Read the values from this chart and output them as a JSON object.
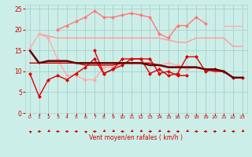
{
  "bg_color": "#cceee8",
  "grid_color": "#aad4ce",
  "xlabel": "Vent moyen/en rafales ( km/h )",
  "xlabel_color": "#cc0000",
  "tick_color": "#cc0000",
  "arrow_color": "#cc0000",
  "ylim": [
    0,
    26
  ],
  "xlim": [
    -0.5,
    23.5
  ],
  "yticks": [
    0,
    5,
    10,
    15,
    20,
    25
  ],
  "xticks": [
    0,
    1,
    2,
    3,
    4,
    5,
    6,
    7,
    8,
    9,
    10,
    11,
    12,
    13,
    14,
    15,
    16,
    17,
    18,
    19,
    20,
    21,
    22,
    23
  ],
  "series": [
    {
      "y": [
        15,
        12,
        12.5,
        12.5,
        12.5,
        12,
        12,
        12,
        12,
        12,
        12,
        12,
        12,
        11.5,
        11.5,
        11,
        11,
        11,
        11,
        10.5,
        10.5,
        10,
        8.5,
        8.5
      ],
      "color": "#660000",
      "lw": 1.8,
      "marker": null,
      "zorder": 6
    },
    {
      "y": [
        9.5,
        4,
        8,
        9,
        8,
        9.5,
        11,
        13,
        9.5,
        10.5,
        13,
        13,
        13,
        9.5,
        10.5,
        9,
        9.5,
        13.5,
        13.5,
        10,
        10.5,
        10,
        8.5,
        8.5
      ],
      "color": "#dd0000",
      "lw": 1.0,
      "marker": "D",
      "ms": 2,
      "zorder": 5
    },
    {
      "y": [
        12,
        12,
        12,
        12,
        12,
        12,
        11.5,
        11.5,
        11.5,
        11.5,
        12,
        12,
        12,
        12,
        11.5,
        11,
        11,
        11,
        11,
        10.5,
        10,
        10,
        8.5,
        8.5
      ],
      "color": "#cc0000",
      "lw": 1.0,
      "marker": null,
      "zorder": 4
    },
    {
      "y": [
        null,
        null,
        null,
        null,
        null,
        null,
        null,
        15,
        9.5,
        10.5,
        11.5,
        13,
        13,
        13,
        9.5,
        10,
        9,
        9,
        null,
        null,
        null,
        null,
        null,
        null
      ],
      "color": "#dd0000",
      "lw": 1.0,
      "marker": "D",
      "ms": 2,
      "zorder": 5
    },
    {
      "y": [
        null,
        null,
        null,
        20,
        21,
        22,
        23,
        24.5,
        23,
        23,
        23.5,
        24,
        23.5,
        23,
        19,
        18,
        21,
        21,
        23,
        21.5,
        null,
        null,
        null,
        null
      ],
      "color": "#ff7777",
      "lw": 1.0,
      "marker": "D",
      "ms": 2,
      "zorder": 3
    },
    {
      "y": [
        null,
        19,
        18.5,
        18,
        18,
        18,
        18,
        18,
        18,
        18,
        18,
        18,
        18,
        18,
        18,
        17.5,
        17,
        17,
        18,
        18,
        18,
        18,
        16,
        16
      ],
      "color": "#ff9999",
      "lw": 1.0,
      "marker": null,
      "zorder": 3
    },
    {
      "y": [
        15.5,
        19,
        18,
        13,
        9,
        9,
        8,
        8,
        11,
        11,
        12,
        12,
        12,
        12,
        11.5,
        12,
        11.5,
        10.5,
        11,
        10.5,
        10,
        10,
        8.5,
        8.5
      ],
      "color": "#ffaaaa",
      "lw": 1.0,
      "marker": "D",
      "ms": 2,
      "zorder": 3
    },
    {
      "y": [
        null,
        null,
        null,
        null,
        null,
        null,
        null,
        null,
        null,
        null,
        null,
        null,
        null,
        null,
        null,
        null,
        null,
        null,
        null,
        null,
        null,
        21,
        21,
        21
      ],
      "color": "#ffaaaa",
      "lw": 1.0,
      "marker": null,
      "zorder": 3
    }
  ],
  "arrows": [
    225,
    270,
    315,
    270,
    270,
    270,
    225,
    270,
    315,
    315,
    270,
    315,
    315,
    270,
    315,
    270,
    270,
    315,
    270,
    270,
    270,
    315,
    270,
    315
  ]
}
